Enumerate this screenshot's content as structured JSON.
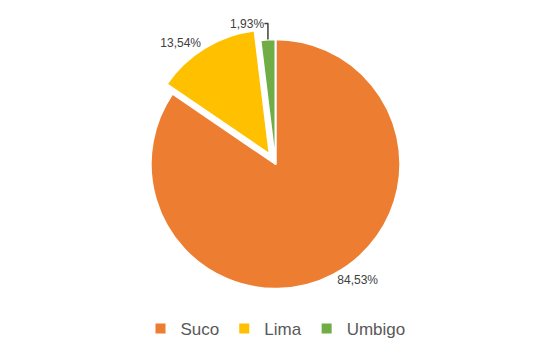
{
  "chart_data": {
    "type": "pie",
    "categories": [
      "Suco",
      "Lima",
      "Umbigo"
    ],
    "values": [
      84.53,
      13.54,
      1.93
    ],
    "value_labels": [
      "84,53%",
      "13,54%",
      "1,93%"
    ],
    "colors": [
      "#ED7D31",
      "#FFC000",
      "#70AD47"
    ],
    "data_labels": true,
    "legend": "bottom"
  }
}
